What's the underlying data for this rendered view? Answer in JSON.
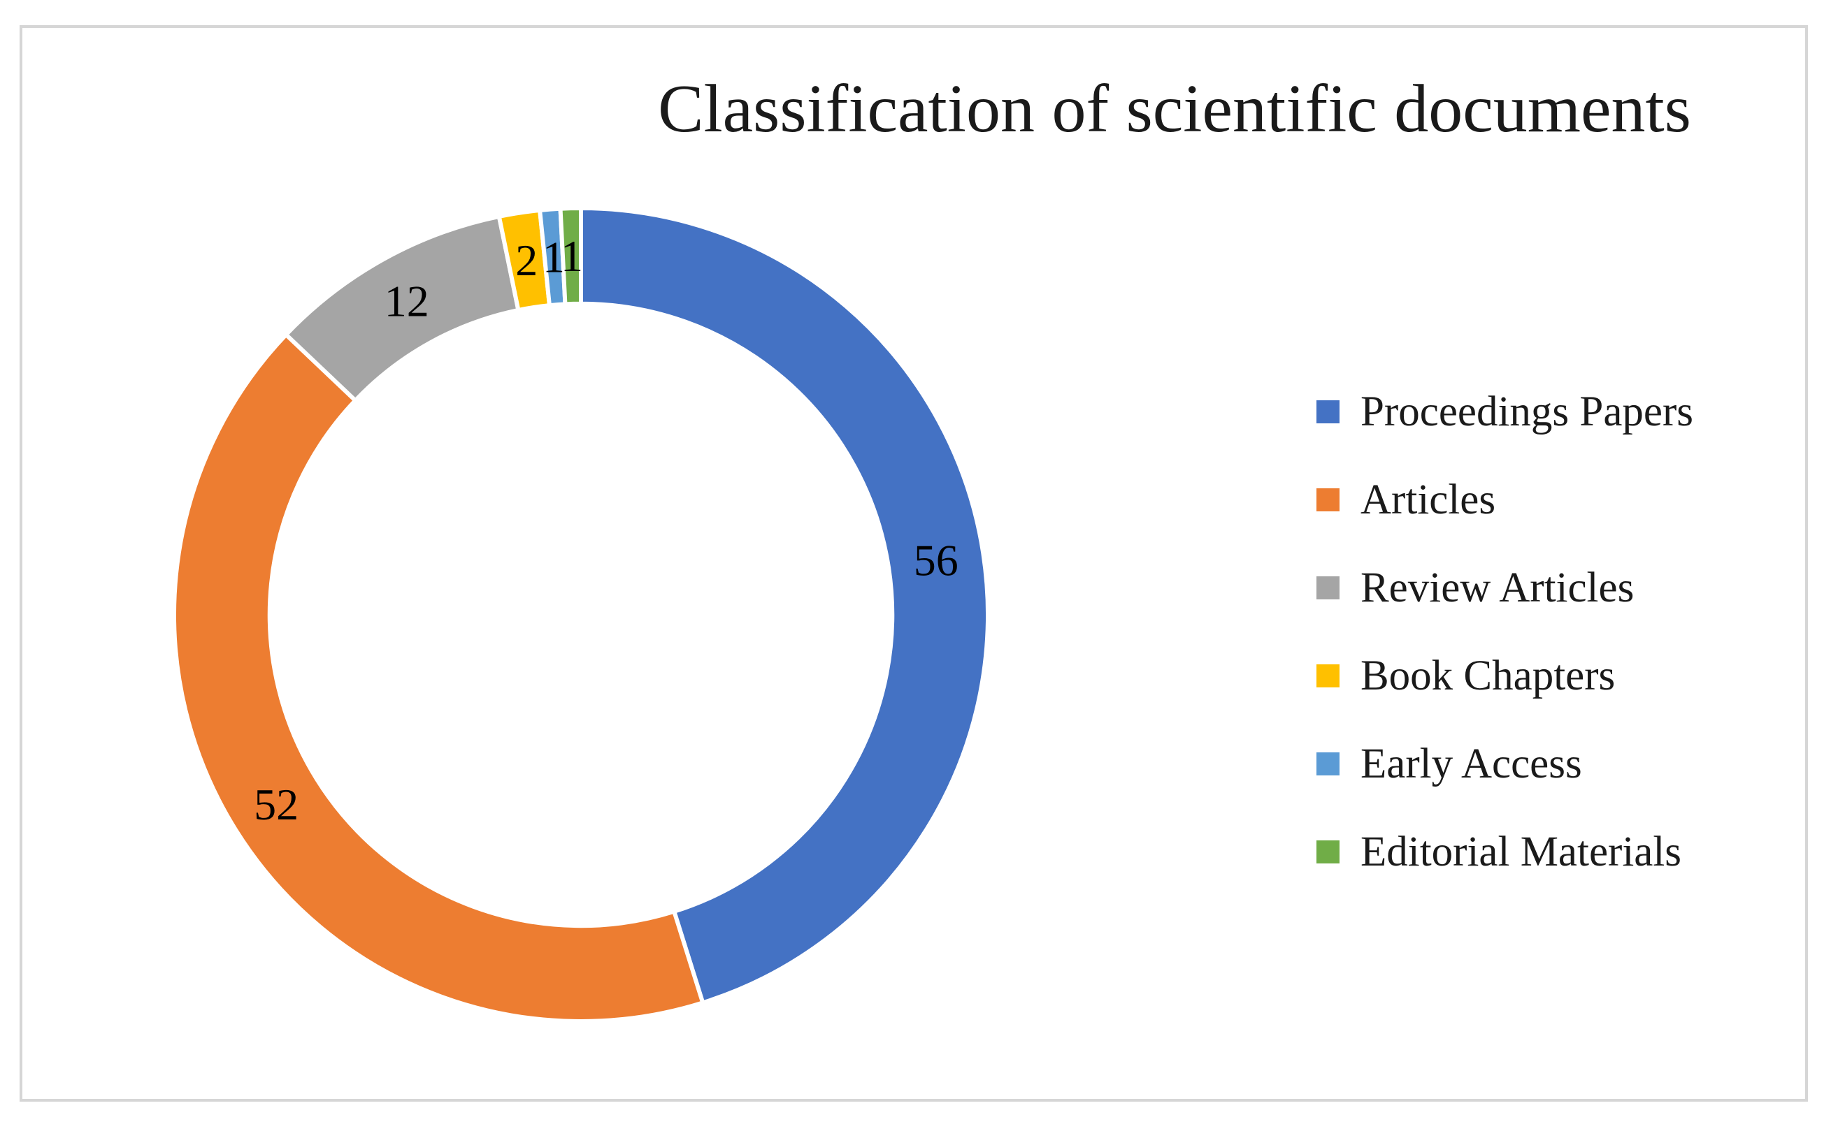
{
  "chart_data": {
    "type": "pie",
    "subtype": "donut",
    "title": "Classification of scientific documents",
    "categories": [
      "Proceedings Papers",
      "Articles",
      "Review Articles",
      "Book Chapters",
      "Early Access",
      "Editorial Materials"
    ],
    "values": [
      56,
      52,
      12,
      2,
      1,
      1
    ],
    "data_labels": [
      "56",
      "52",
      "12",
      "2",
      "1",
      "1"
    ],
    "colors": [
      "#4472C4",
      "#ED7D31",
      "#A5A5A5",
      "#FFC000",
      "#5B9BD5",
      "#70AD47"
    ],
    "start_angle_deg": 0,
    "direction": "clockwise",
    "donut_hole_ratio": 0.765,
    "slice_gap_color": "#FFFFFF",
    "legend_position": "right",
    "label_color": "#000000"
  },
  "legend": {
    "items": [
      {
        "label": "Proceedings Papers",
        "color": "#4472C4"
      },
      {
        "label": "Articles",
        "color": "#ED7D31"
      },
      {
        "label": "Review Articles",
        "color": "#A5A5A5"
      },
      {
        "label": "Book Chapters",
        "color": "#FFC000"
      },
      {
        "label": "Early Access",
        "color": "#5B9BD5"
      },
      {
        "label": "Editorial Materials",
        "color": "#70AD47"
      }
    ]
  }
}
